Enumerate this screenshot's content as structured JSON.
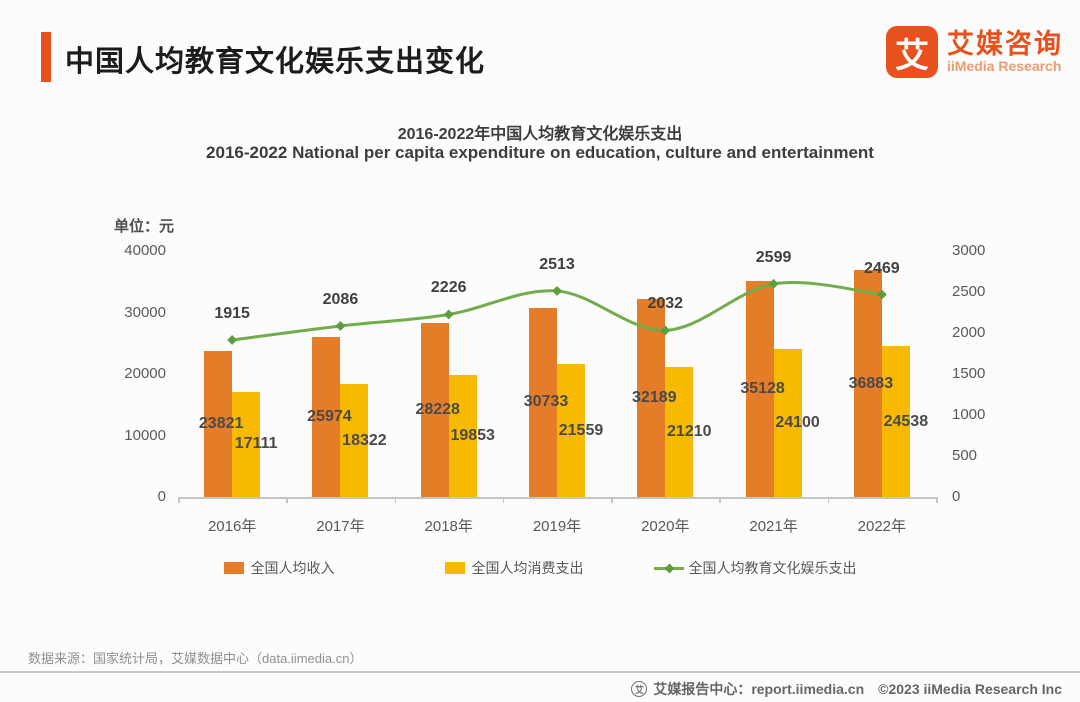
{
  "header": {
    "title": "中国人均教育文化娱乐支出变化",
    "accent_color": "#e8511d",
    "logo": {
      "mark": "艾",
      "name_cn": "艾媒咨询",
      "name_en": "iiMedia Research"
    }
  },
  "chart": {
    "title_cn": "2016-2022年中国人均教育文化娱乐支出",
    "title_en": "2016-2022 National per capita expenditure on education, culture and entertainment",
    "unit_label": "单位：元"
  },
  "chart_data": {
    "type": "bar",
    "title": "2016-2022年中国人均教育文化娱乐支出",
    "subtitle": "2016-2022 National per capita expenditure on education, culture and entertainment",
    "unit": "元",
    "categories": [
      "2016年",
      "2017年",
      "2018年",
      "2019年",
      "2020年",
      "2021年",
      "2022年"
    ],
    "series": [
      {
        "name": "全国人均收入",
        "type": "bar",
        "axis": "left",
        "color": "#e57c28",
        "values": [
          23821,
          25974,
          28228,
          30733,
          32189,
          35128,
          36883
        ]
      },
      {
        "name": "全国人均消费支出",
        "type": "bar",
        "axis": "left",
        "color": "#f7ba00",
        "values": [
          17111,
          18322,
          19853,
          21559,
          21210,
          24100,
          24538
        ]
      },
      {
        "name": "全国人均教育文化娱乐支出",
        "type": "line",
        "axis": "right",
        "color": "#72ac4b",
        "marker_color": "#5e9e3e",
        "values": [
          1915,
          2086,
          2226,
          2513,
          2032,
          2599,
          2469
        ]
      }
    ],
    "left_axis": {
      "ticks": [
        0,
        10000,
        20000,
        30000,
        40000
      ],
      "max": 40000
    },
    "right_axis": {
      "ticks": [
        0,
        500,
        1000,
        1500,
        2000,
        2500,
        3000
      ],
      "max": 3000
    },
    "grid": false,
    "legend_position": "bottom"
  },
  "footer": {
    "source": "数据来源：国家统计局，艾媒数据中心（data.iimedia.cn）",
    "report_center": "艾媒报告中心：report.iimedia.cn",
    "copyright": "©2023  iiMedia Research Inc",
    "globe_mark": "艾"
  }
}
